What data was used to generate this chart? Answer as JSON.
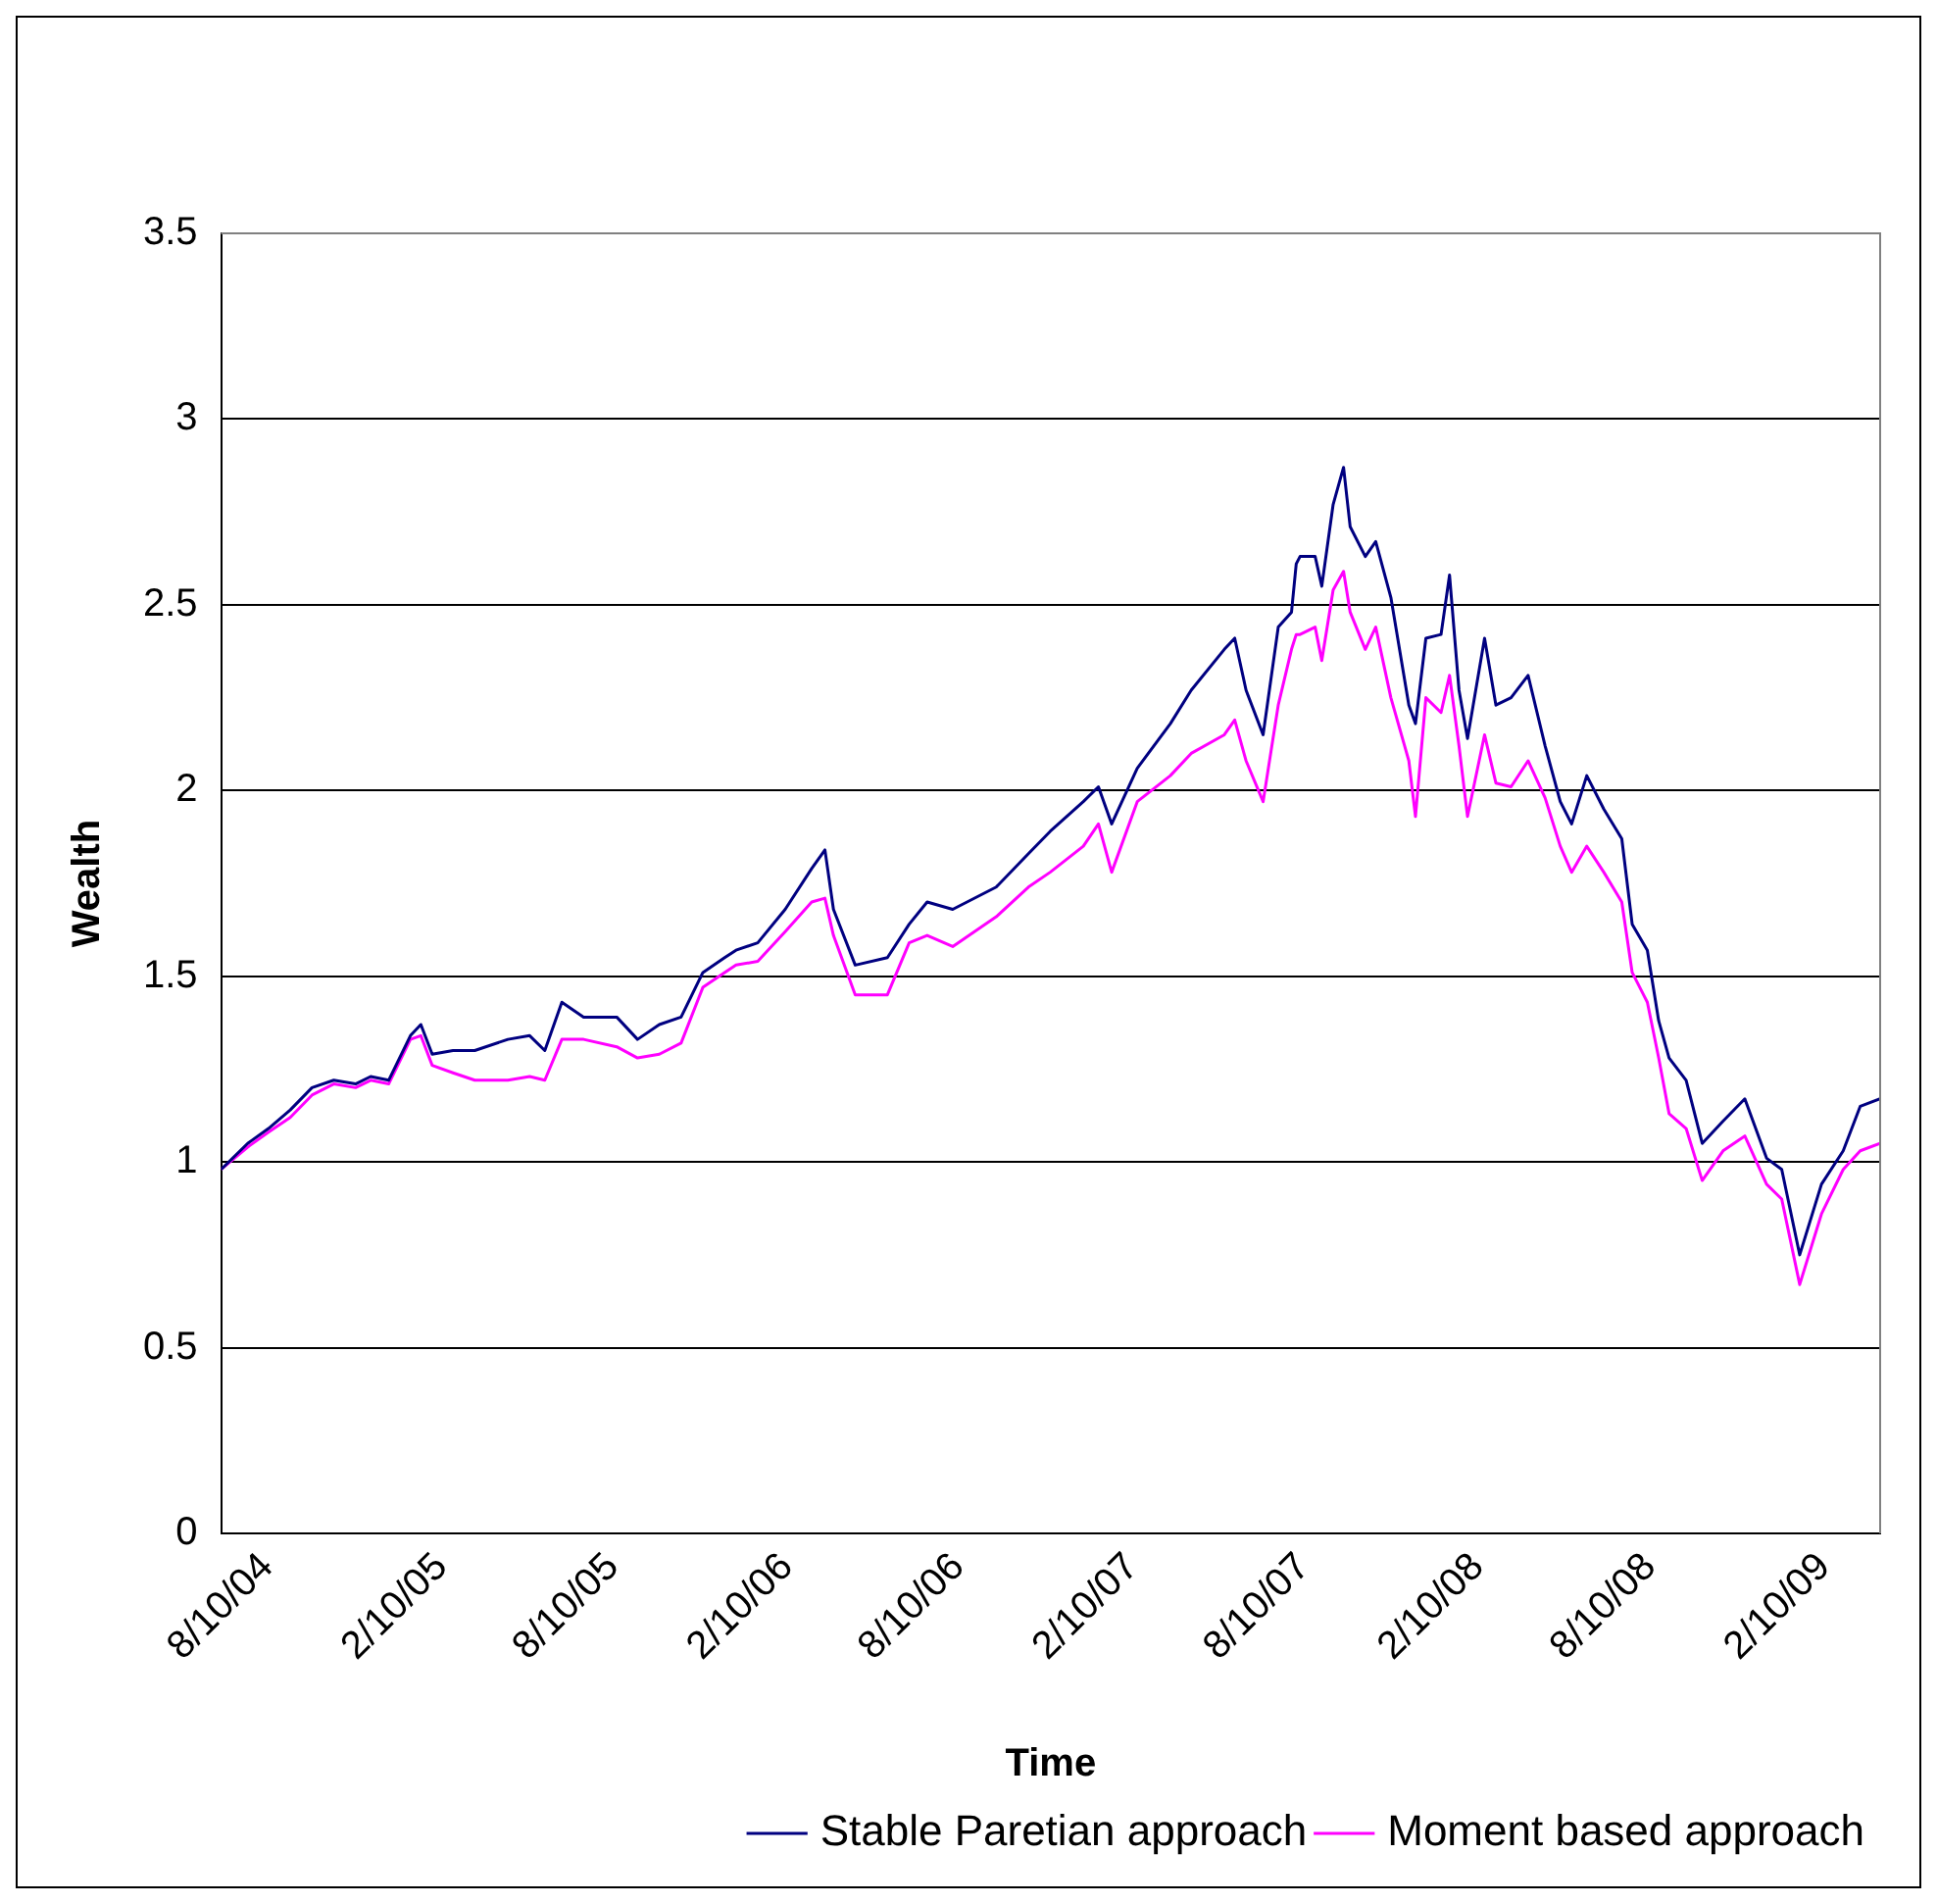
{
  "chart_data": {
    "type": "line",
    "xlabel": "Time",
    "ylabel": "Wealth",
    "x": [
      "2004-08-10",
      "2004-09-07",
      "2004-09-29",
      "2004-10-22",
      "2004-11-14",
      "2004-12-07",
      "2004-12-30",
      "2005-01-15",
      "2005-02-03",
      "2005-02-26",
      "2005-03-09",
      "2005-03-21",
      "2005-04-12",
      "2005-05-05",
      "2005-06-09",
      "2005-07-02",
      "2005-07-18",
      "2005-08-05",
      "2005-08-28",
      "2005-10-02",
      "2005-10-24",
      "2005-11-16",
      "2005-12-09",
      "2006-01-01",
      "2006-01-24",
      "2006-02-05",
      "2006-02-28",
      "2006-03-29",
      "2006-04-26",
      "2006-05-10",
      "2006-05-19",
      "2006-06-11",
      "2006-07-15",
      "2006-08-07",
      "2006-08-26",
      "2006-09-22",
      "2006-11-07",
      "2006-12-11",
      "2007-01-03",
      "2007-02-07",
      "2007-02-23",
      "2007-03-09",
      "2007-04-05",
      "2007-05-10",
      "2007-06-01",
      "2007-07-06",
      "2007-07-17",
      "2007-07-29",
      "2007-08-16",
      "2007-09-01",
      "2007-09-15",
      "2007-09-20",
      "2007-09-24",
      "2007-10-10",
      "2007-10-17",
      "2007-10-29",
      "2007-11-09",
      "2007-11-16",
      "2007-12-02",
      "2007-12-13",
      "2007-12-29",
      "2008-01-17",
      "2008-01-24",
      "2008-02-04",
      "2008-02-20",
      "2008-02-29",
      "2008-03-10",
      "2008-03-19",
      "2008-04-06",
      "2008-04-18",
      "2008-05-04",
      "2008-05-22",
      "2008-06-09",
      "2008-06-25",
      "2008-07-07",
      "2008-07-23",
      "2008-08-10",
      "2008-08-29",
      "2008-09-09",
      "2008-09-25",
      "2008-10-07",
      "2008-10-18",
      "2008-11-05",
      "2008-11-22",
      "2008-12-14",
      "2009-01-06",
      "2009-01-29",
      "2009-02-14",
      "2009-03-05",
      "2009-03-28",
      "2009-04-20",
      "2009-05-08",
      "2009-05-29"
    ],
    "series": [
      {
        "name": "Stable Paretian approach",
        "color": "#000080",
        "values": [
          0.98,
          1.05,
          1.09,
          1.14,
          1.2,
          1.22,
          1.21,
          1.23,
          1.22,
          1.34,
          1.37,
          1.29,
          1.3,
          1.3,
          1.33,
          1.34,
          1.3,
          1.43,
          1.39,
          1.39,
          1.33,
          1.37,
          1.39,
          1.51,
          1.55,
          1.57,
          1.59,
          1.68,
          1.79,
          1.84,
          1.68,
          1.53,
          1.55,
          1.64,
          1.7,
          1.68,
          1.74,
          1.83,
          1.89,
          1.97,
          2.01,
          1.91,
          2.06,
          2.18,
          2.27,
          2.38,
          2.41,
          2.27,
          2.15,
          2.44,
          2.48,
          2.61,
          2.63,
          2.63,
          2.55,
          2.77,
          2.87,
          2.71,
          2.63,
          2.67,
          2.52,
          2.23,
          2.18,
          2.41,
          2.42,
          2.58,
          2.27,
          2.14,
          2.41,
          2.23,
          2.25,
          2.31,
          2.12,
          1.97,
          1.91,
          2.04,
          1.95,
          1.87,
          1.64,
          1.57,
          1.38,
          1.28,
          1.22,
          1.05,
          1.11,
          1.17,
          1.01,
          0.98,
          0.75,
          0.94,
          1.03,
          1.15,
          1.17
        ]
      },
      {
        "name": "Moment based approach",
        "color": "#ff00ff",
        "values": [
          0.98,
          1.04,
          1.08,
          1.12,
          1.18,
          1.21,
          1.2,
          1.22,
          1.21,
          1.33,
          1.34,
          1.26,
          1.24,
          1.22,
          1.22,
          1.23,
          1.22,
          1.33,
          1.33,
          1.31,
          1.28,
          1.29,
          1.32,
          1.47,
          1.51,
          1.53,
          1.54,
          1.62,
          1.7,
          1.71,
          1.61,
          1.45,
          1.45,
          1.59,
          1.61,
          1.58,
          1.66,
          1.74,
          1.78,
          1.85,
          1.91,
          1.78,
          1.97,
          2.04,
          2.1,
          2.15,
          2.19,
          2.08,
          1.97,
          2.23,
          2.38,
          2.42,
          2.42,
          2.44,
          2.35,
          2.54,
          2.59,
          2.48,
          2.38,
          2.44,
          2.25,
          2.08,
          1.93,
          2.25,
          2.21,
          2.31,
          2.12,
          1.93,
          2.15,
          2.02,
          2.01,
          2.08,
          1.98,
          1.85,
          1.78,
          1.85,
          1.78,
          1.7,
          1.51,
          1.43,
          1.28,
          1.13,
          1.09,
          0.95,
          1.03,
          1.07,
          0.94,
          0.9,
          0.67,
          0.86,
          0.98,
          1.03,
          1.05
        ]
      }
    ],
    "xlim": [
      "2004-08-10",
      "2009-05-29"
    ],
    "xticks": [
      {
        "value": "2004-08-10",
        "label": "8/10/04"
      },
      {
        "value": "2005-02-10",
        "label": "2/10/05"
      },
      {
        "value": "2005-08-10",
        "label": "8/10/05"
      },
      {
        "value": "2006-02-10",
        "label": "2/10/06"
      },
      {
        "value": "2006-08-10",
        "label": "8/10/06"
      },
      {
        "value": "2007-02-10",
        "label": "2/10/07"
      },
      {
        "value": "2007-08-10",
        "label": "8/10/07"
      },
      {
        "value": "2008-02-10",
        "label": "2/10/08"
      },
      {
        "value": "2008-08-10",
        "label": "8/10/08"
      },
      {
        "value": "2009-02-10",
        "label": "2/10/09"
      }
    ],
    "ylim": [
      0,
      3.5
    ],
    "yticks": [
      0,
      0.5,
      1,
      1.5,
      2,
      2.5,
      3,
      3.5
    ],
    "grid": "y",
    "legend": "bottom",
    "line_style": "solid"
  }
}
